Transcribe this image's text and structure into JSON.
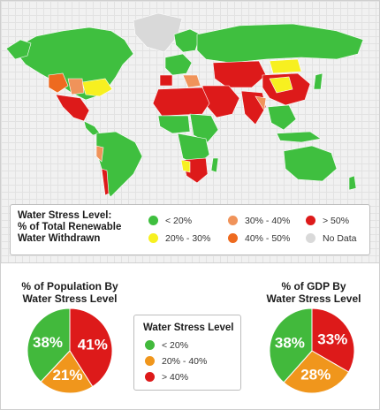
{
  "map": {
    "legend": {
      "title_lines": [
        "Water Stress Level:",
        "% of Total Renewable",
        "Water Withdrawn"
      ],
      "items": [
        {
          "label": "< 20%",
          "color": "#3fbf3f"
        },
        {
          "label": "20% - 30%",
          "color": "#f7f020"
        },
        {
          "label": "30% - 40%",
          "color": "#f0935a"
        },
        {
          "label": "40% - 50%",
          "color": "#ee6a1f"
        },
        {
          "label": "> 50%",
          "color": "#dd1a1a"
        },
        {
          "label": "No Data",
          "color": "#d9d9d9"
        }
      ]
    }
  },
  "population_pie": {
    "title_lines": [
      "% of Population By",
      "Water Stress Level"
    ],
    "slices": [
      {
        "label": "41%",
        "value": 41,
        "color": "#dd1a1a"
      },
      {
        "label": "21%",
        "value": 21,
        "color": "#f0961c"
      },
      {
        "label": "38%",
        "value": 38,
        "color": "#42b93c"
      }
    ]
  },
  "gdp_pie": {
    "title_lines": [
      "% of GDP By",
      "Water Stress Level"
    ],
    "slices": [
      {
        "label": "33%",
        "value": 33,
        "color": "#dd1a1a"
      },
      {
        "label": "28%",
        "value": 28,
        "color": "#f0961c"
      },
      {
        "label": "38%",
        "value": 38,
        "color": "#42b93c"
      }
    ]
  },
  "pie_legend": {
    "title": "Water Stress Level",
    "items": [
      {
        "label": "< 20%",
        "color": "#42b93c"
      },
      {
        "label": "20% - 40%",
        "color": "#f0961c"
      },
      {
        "label": "> 40%",
        "color": "#dd1a1a"
      }
    ]
  }
}
